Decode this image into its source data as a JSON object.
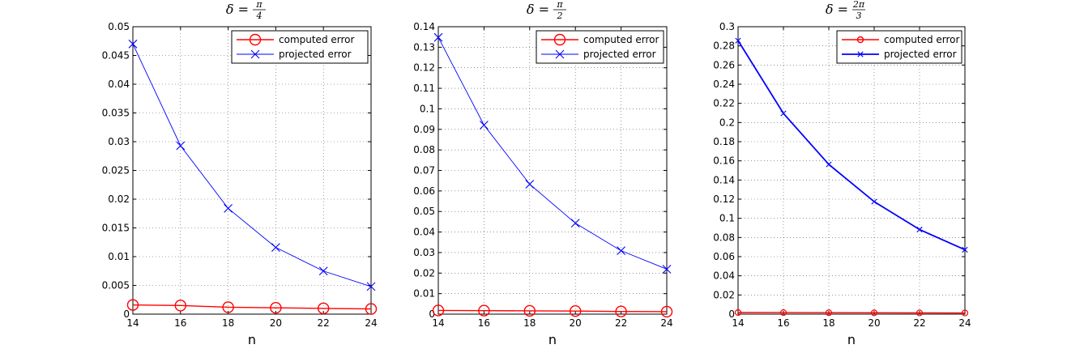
{
  "chart_data": [
    {
      "type": "line",
      "title": {
        "prefix": "δ =",
        "num": "π",
        "den": "4"
      },
      "xlabel": "n",
      "ylabel": "",
      "x": [
        14,
        16,
        18,
        20,
        22,
        24
      ],
      "xlim": [
        14,
        24
      ],
      "ylim": [
        0,
        0.05
      ],
      "xticks": [
        14,
        16,
        18,
        20,
        22,
        24
      ],
      "yticks": [
        0,
        0.005,
        0.01,
        0.015,
        0.02,
        0.025,
        0.03,
        0.035,
        0.04,
        0.045,
        0.05
      ],
      "ytick_labels": [
        "0",
        "0.005",
        "0.01",
        "0.015",
        "0.02",
        "0.025",
        "0.03",
        "0.035",
        "0.04",
        "0.045",
        "0.05"
      ],
      "grid": true,
      "legend": "top-right",
      "series": [
        {
          "name": "computed error",
          "color": "#ff0000",
          "marker": "circle",
          "marker_scale": "large",
          "values": [
            0.0016,
            0.0015,
            0.0012,
            0.0011,
            0.001,
            0.0009
          ]
        },
        {
          "name": "projected error",
          "color": "#0000ff",
          "marker": "x",
          "marker_scale": "large",
          "values": [
            0.047,
            0.0293,
            0.0184,
            0.0116,
            0.0075,
            0.0048
          ]
        }
      ]
    },
    {
      "type": "line",
      "title": {
        "prefix": "δ =",
        "num": "π",
        "den": "2"
      },
      "xlabel": "n",
      "ylabel": "",
      "x": [
        14,
        16,
        18,
        20,
        22,
        24
      ],
      "xlim": [
        14,
        24
      ],
      "ylim": [
        0,
        0.14
      ],
      "xticks": [
        14,
        16,
        18,
        20,
        22,
        24
      ],
      "yticks": [
        0,
        0.01,
        0.02,
        0.03,
        0.04,
        0.05,
        0.06,
        0.07,
        0.08,
        0.09,
        0.1,
        0.11,
        0.12,
        0.13,
        0.14
      ],
      "ytick_labels": [
        "0",
        "0.01",
        "0.02",
        "0.03",
        "0.04",
        "0.05",
        "0.06",
        "0.07",
        "0.08",
        "0.09",
        "0.1",
        "0.11",
        "0.12",
        "0.13",
        "0.14"
      ],
      "grid": true,
      "legend": "top-right",
      "series": [
        {
          "name": "computed error",
          "color": "#ff0000",
          "marker": "circle",
          "marker_scale": "large",
          "values": [
            0.0018,
            0.0017,
            0.0016,
            0.0015,
            0.0013,
            0.0012
          ]
        },
        {
          "name": "projected error",
          "color": "#0000ff",
          "marker": "x",
          "marker_scale": "large",
          "values": [
            0.1348,
            0.0921,
            0.0633,
            0.0443,
            0.0309,
            0.0219
          ]
        }
      ]
    },
    {
      "type": "line",
      "title": {
        "prefix": "δ =",
        "num": "2π",
        "den": "3"
      },
      "xlabel": "n",
      "ylabel": "",
      "x": [
        14,
        16,
        18,
        20,
        22,
        24
      ],
      "xlim": [
        14,
        24
      ],
      "ylim": [
        0,
        0.3
      ],
      "xticks": [
        14,
        16,
        18,
        20,
        22,
        24
      ],
      "yticks": [
        0,
        0.02,
        0.04,
        0.06,
        0.08,
        0.1,
        0.12,
        0.14,
        0.16,
        0.18,
        0.2,
        0.22,
        0.24,
        0.26,
        0.28,
        0.3
      ],
      "ytick_labels": [
        "0",
        "0.02",
        "0.04",
        "0.06",
        "0.08",
        "0.1",
        "0.12",
        "0.14",
        "0.16",
        "0.18",
        "0.2",
        "0.22",
        "0.24",
        "0.26",
        "0.28",
        "0.3"
      ],
      "grid": true,
      "legend": "top-right",
      "series": [
        {
          "name": "computed error",
          "color": "#ff0000",
          "marker": "circle",
          "marker_scale": "small",
          "values": [
            0.0017,
            0.0016,
            0.0015,
            0.0014,
            0.0013,
            0.0012
          ]
        },
        {
          "name": "projected error",
          "color": "#0000ff",
          "marker": "x",
          "marker_scale": "small",
          "values": [
            0.2855,
            0.2095,
            0.1563,
            0.1174,
            0.0883,
            0.0672
          ]
        }
      ]
    }
  ]
}
